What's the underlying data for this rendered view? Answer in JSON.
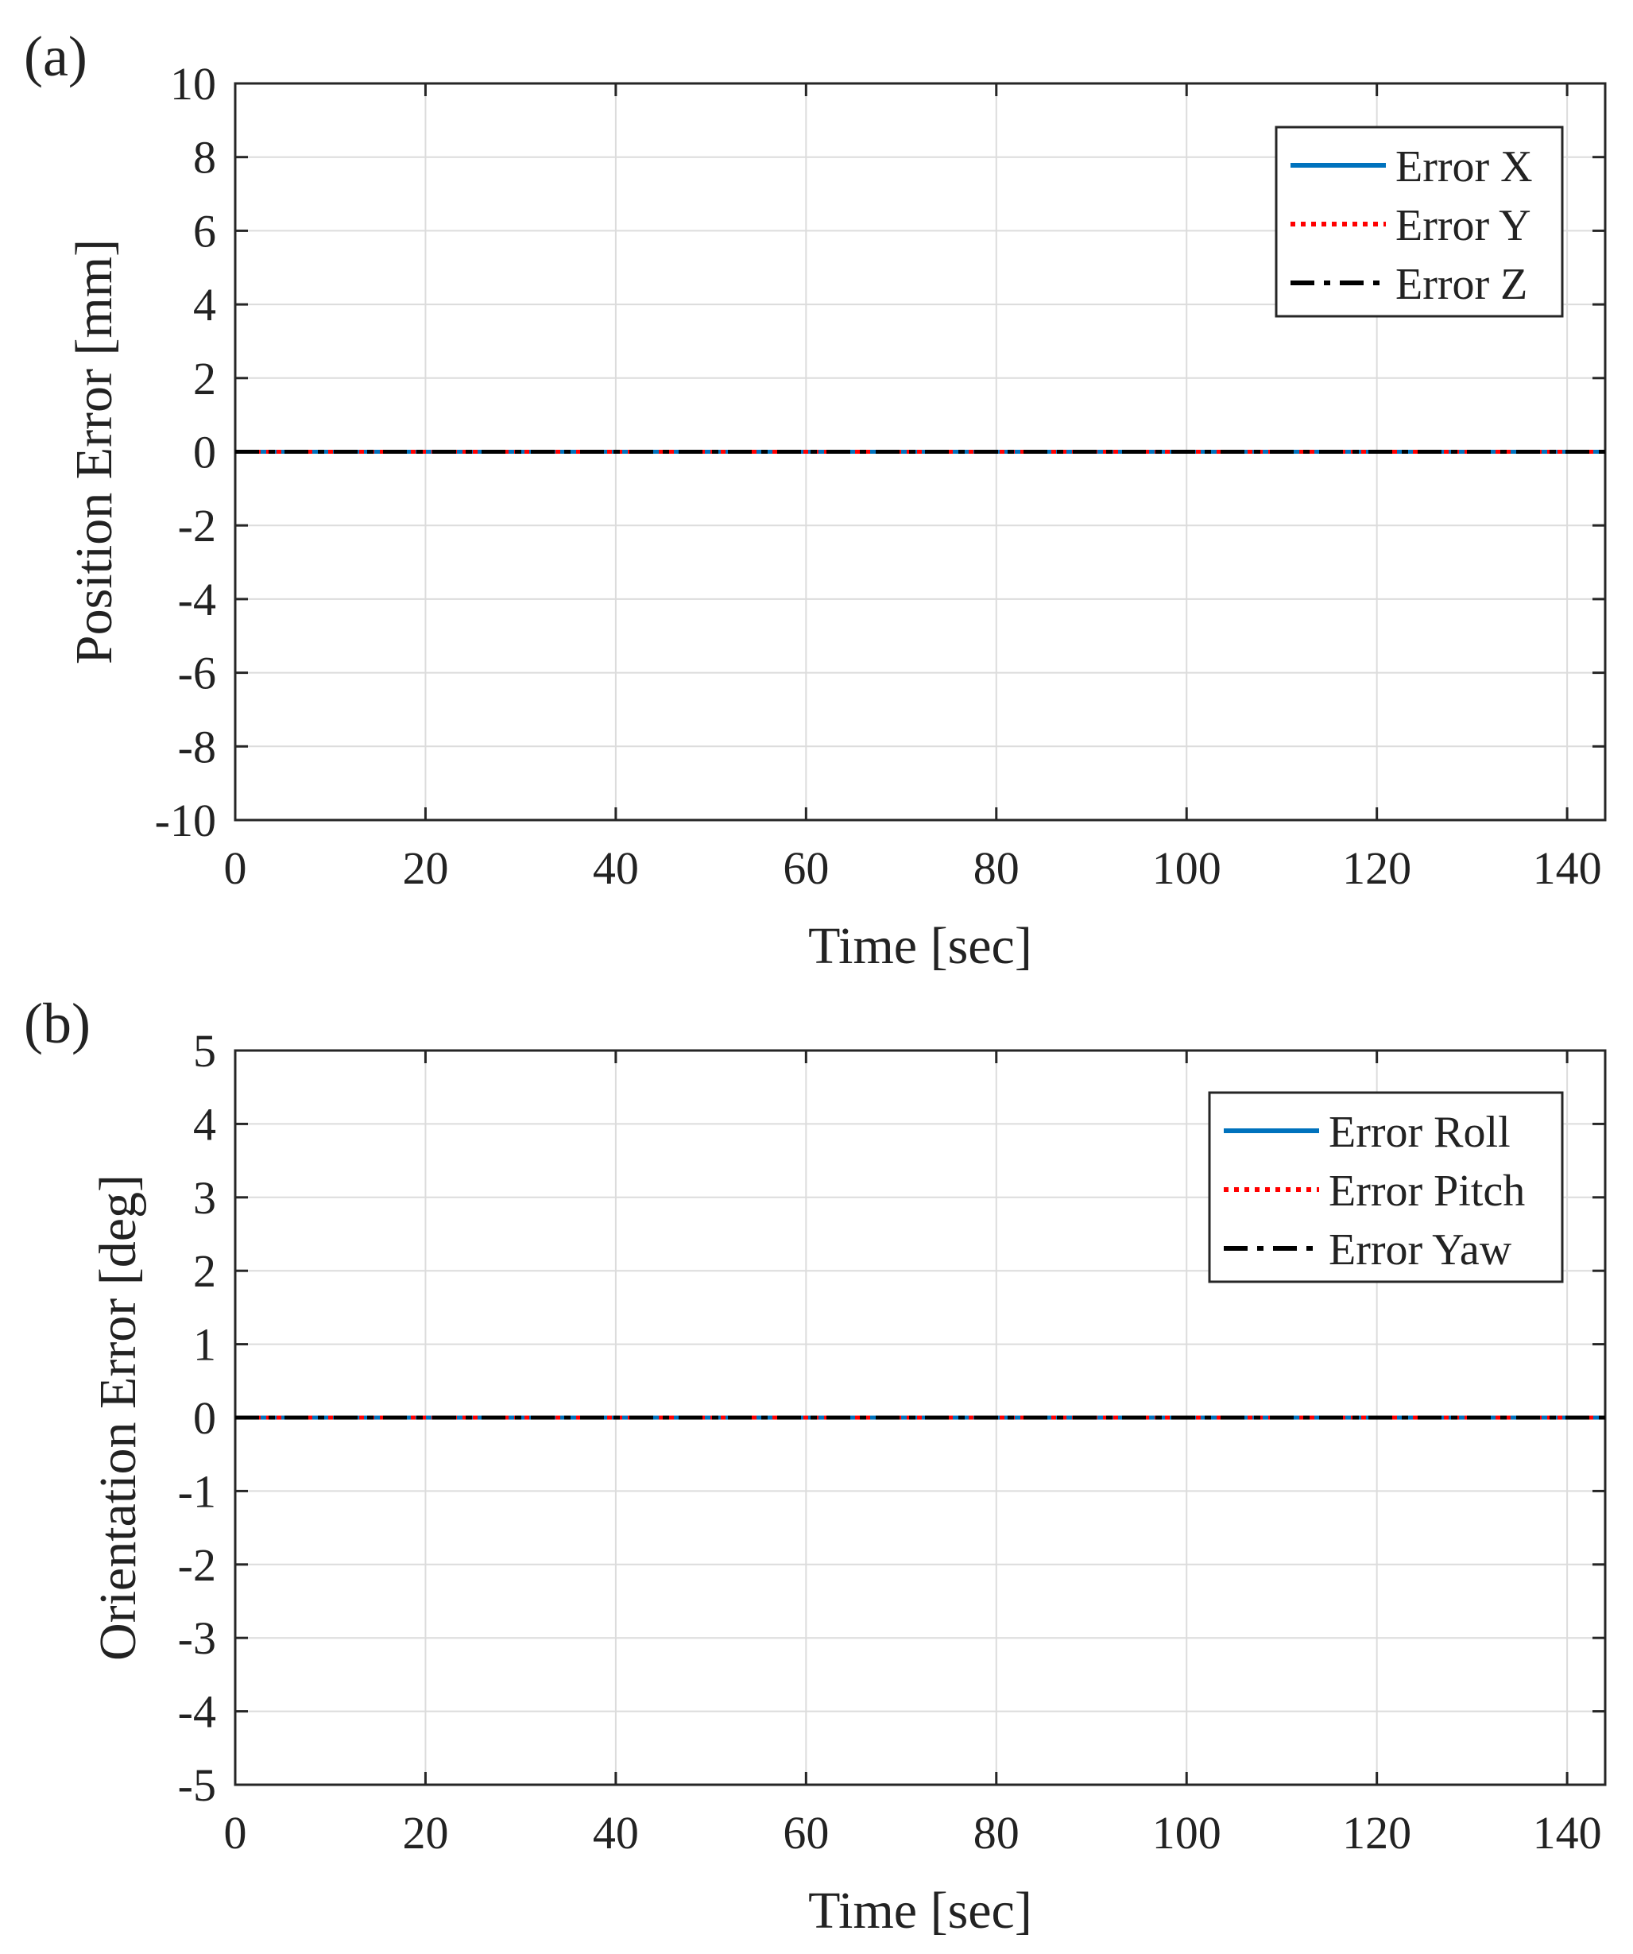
{
  "colors": {
    "series_x": "#0072BD",
    "series_y": "#FF0000",
    "series_z": "#000000",
    "grid": "#dcdcdc",
    "axis": "#262626",
    "text": "#222222"
  },
  "chart_data": [
    {
      "id": "a",
      "panel_label": "(a)",
      "type": "line",
      "xlabel": "Time [sec]",
      "ylabel": "Position Error [mm]",
      "xlim": [
        0,
        144
      ],
      "ylim": [
        -10,
        10
      ],
      "xticks": [
        0,
        20,
        40,
        60,
        80,
        100,
        120,
        140
      ],
      "yticks": [
        -10,
        -8,
        -6,
        -4,
        -2,
        0,
        2,
        4,
        6,
        8,
        10
      ],
      "grid": true,
      "legend_position": "top-right",
      "x": [
        0,
        144
      ],
      "series": [
        {
          "name": "Error X",
          "style": "solid",
          "color": "#0072BD",
          "values": [
            0,
            0
          ]
        },
        {
          "name": "Error Y",
          "style": "dotted",
          "color": "#FF0000",
          "values": [
            0,
            0
          ]
        },
        {
          "name": "Error Z",
          "style": "dashdot",
          "color": "#000000",
          "values": [
            0,
            0
          ]
        }
      ]
    },
    {
      "id": "b",
      "panel_label": "(b)",
      "type": "line",
      "xlabel": "Time [sec]",
      "ylabel": "Orientation Error [deg]",
      "xlim": [
        0,
        144
      ],
      "ylim": [
        -5,
        5
      ],
      "xticks": [
        0,
        20,
        40,
        60,
        80,
        100,
        120,
        140
      ],
      "yticks": [
        -5,
        -4,
        -3,
        -2,
        -1,
        0,
        1,
        2,
        3,
        4,
        5
      ],
      "grid": true,
      "legend_position": "top-right",
      "x": [
        0,
        144
      ],
      "series": [
        {
          "name": "Error Roll",
          "style": "solid",
          "color": "#0072BD",
          "values": [
            0,
            0
          ]
        },
        {
          "name": "Error Pitch",
          "style": "dotted",
          "color": "#FF0000",
          "values": [
            0,
            0
          ]
        },
        {
          "name": "Error Yaw",
          "style": "dashdot",
          "color": "#000000",
          "values": [
            0,
            0
          ]
        }
      ]
    }
  ]
}
